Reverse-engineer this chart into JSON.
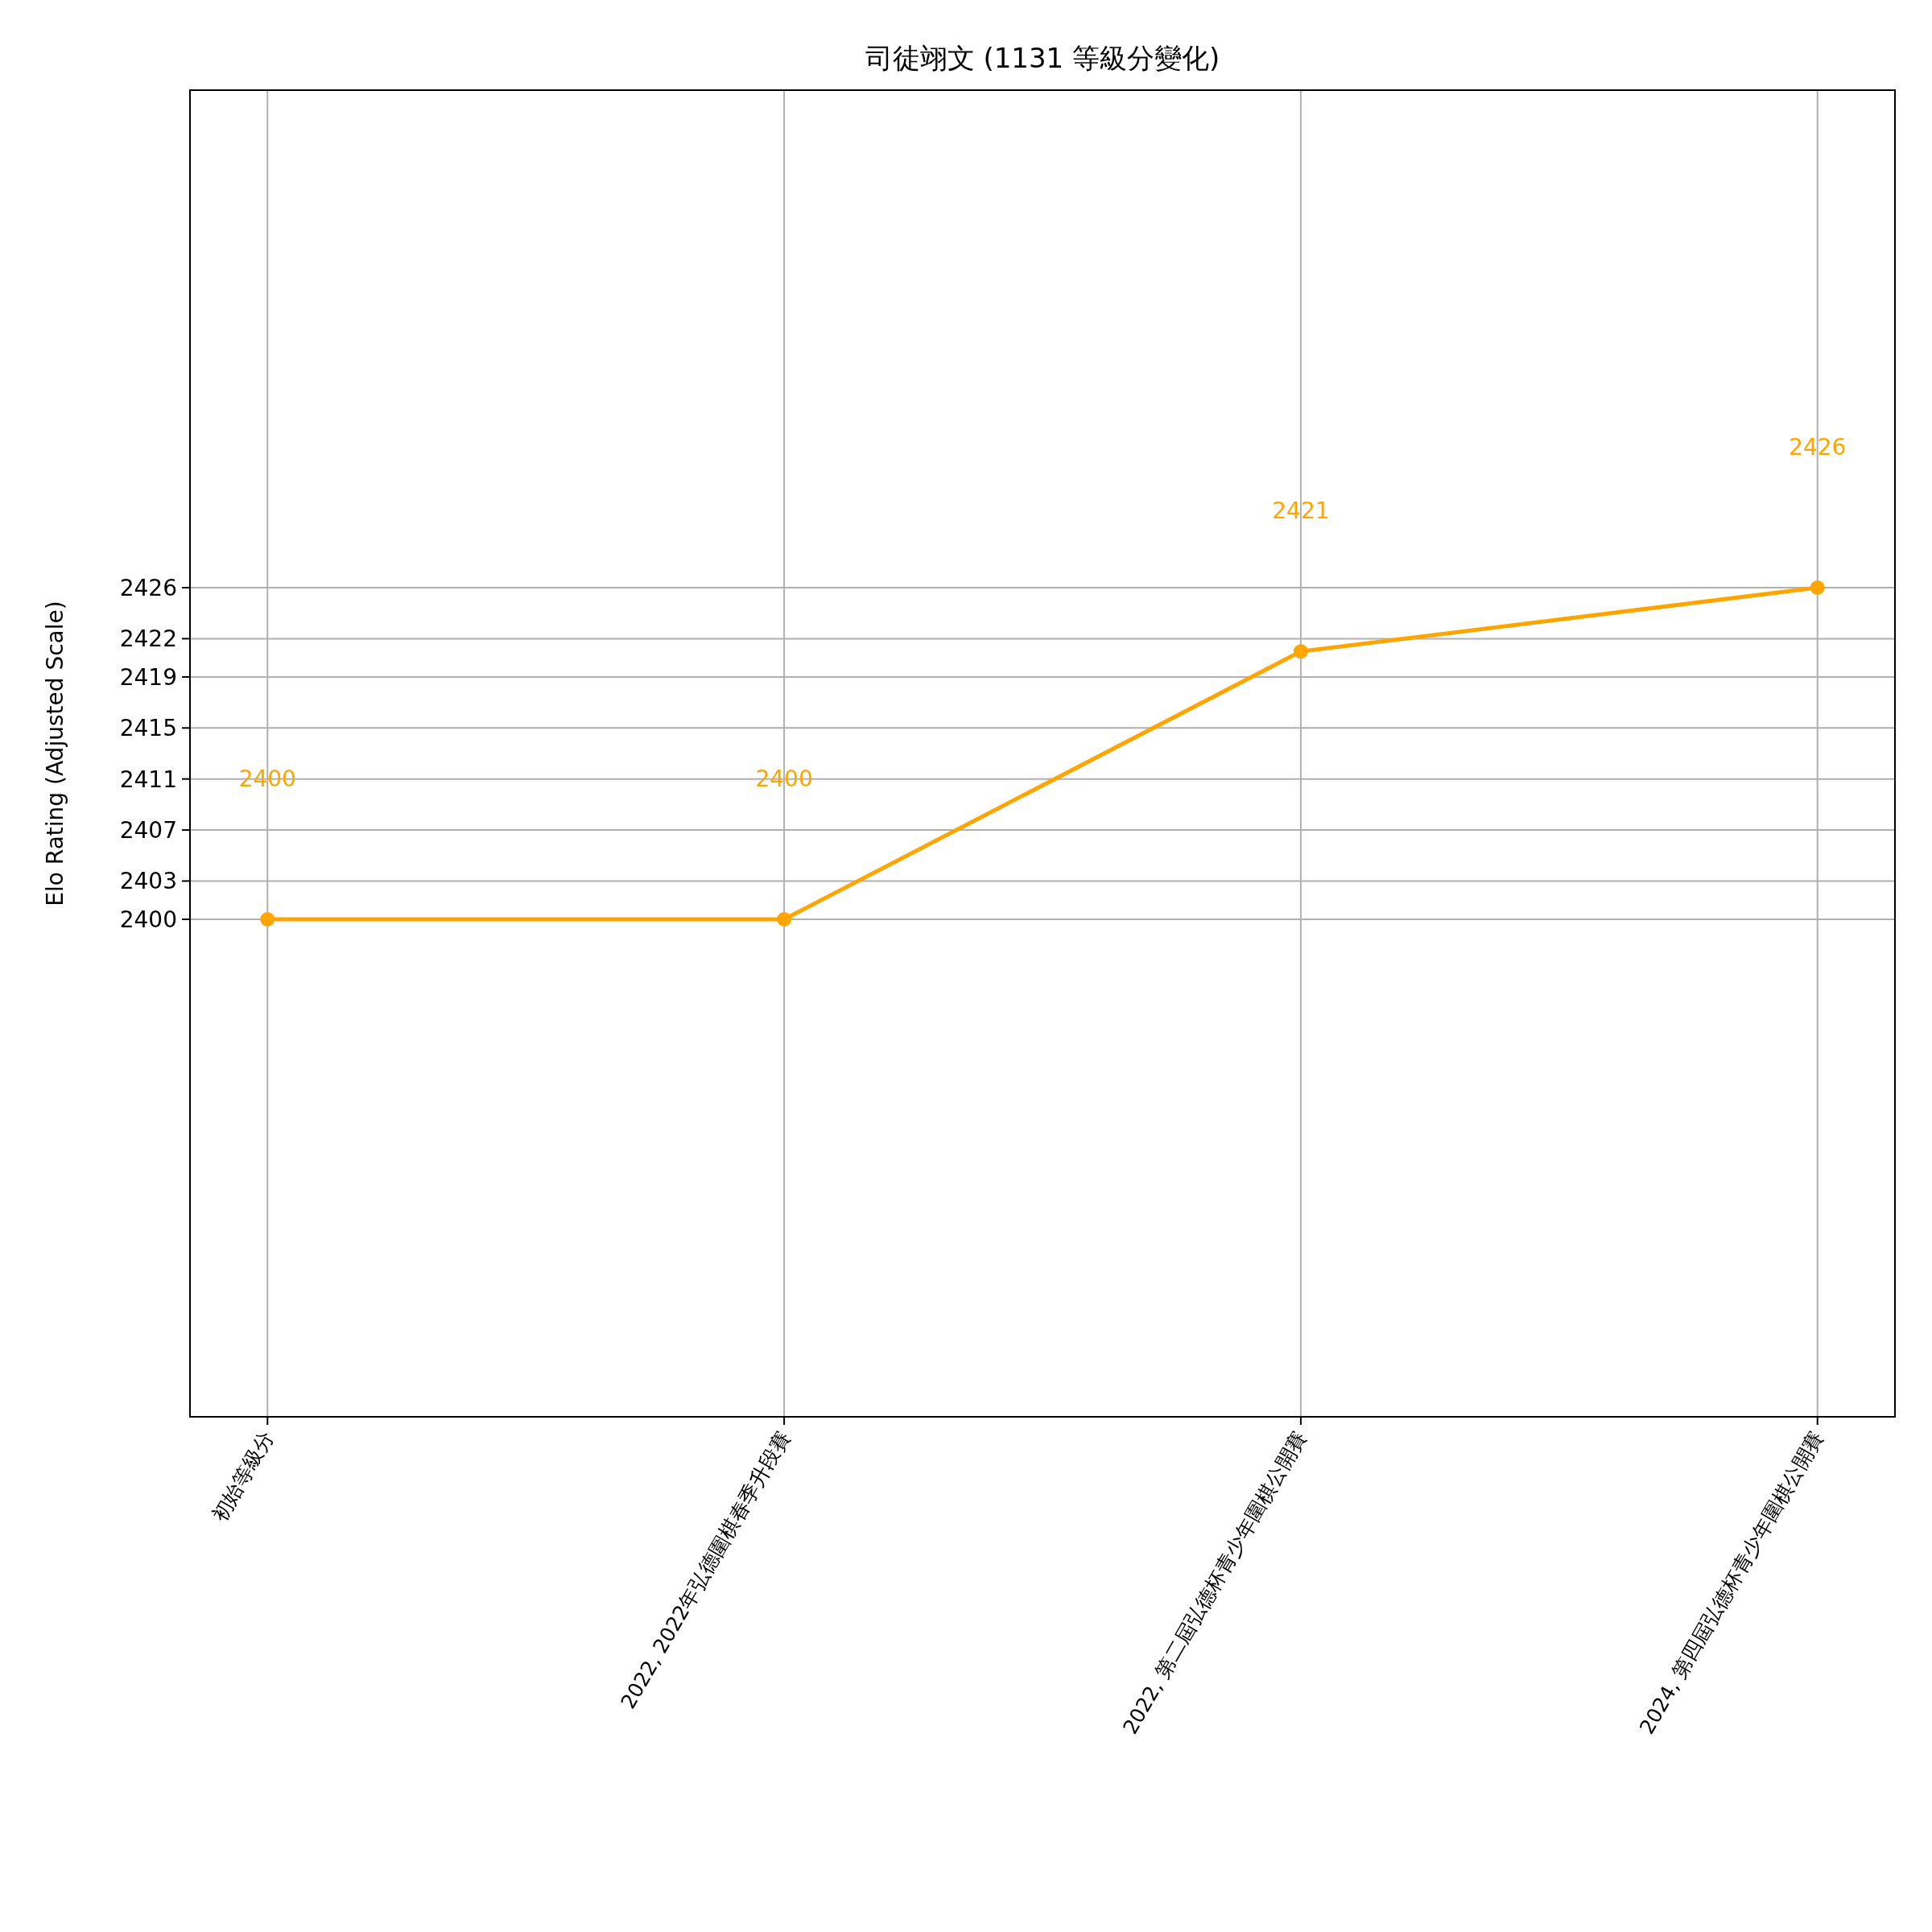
{
  "chart_data": {
    "type": "line",
    "title": "司徒翊文 (1131 等級分變化)",
    "ylabel": "Elo Rating (Adjusted Scale)",
    "categories": [
      "初始等級分",
      "2022, 2022年弘德圍棋春季升段賽",
      "2022, 第二屆弘德杯青少年圍棋公開賽",
      "2024, 第四屆弘德杯青少年圍棋公開賽"
    ],
    "series": [
      {
        "color": "#ffa500",
        "values": [
          2400,
          2400,
          2421,
          2426
        ]
      }
    ],
    "annotations": [
      "2400",
      "2400",
      "2421",
      "2426"
    ],
    "marker": "circle",
    "line_style": "solid",
    "grid": true,
    "ylim": [
      2361,
      2465
    ],
    "yticks": [
      2400,
      2403,
      2407,
      2411,
      2415,
      2419,
      2422,
      2426
    ]
  }
}
